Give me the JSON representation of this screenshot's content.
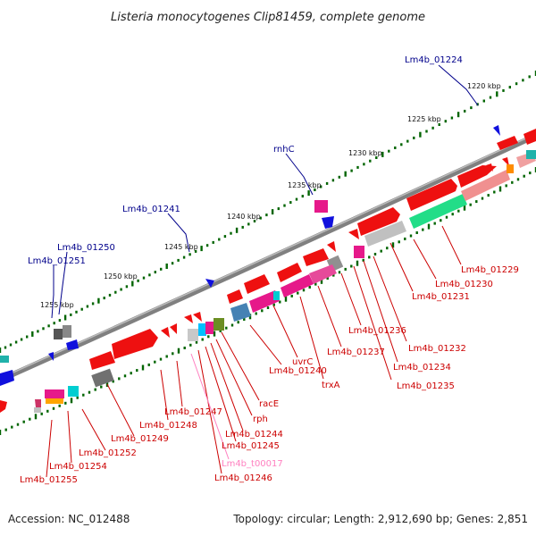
{
  "title": "Listeria monocytogenes Clip81459, complete genome",
  "footer": {
    "accession": "Accession: NC_012488",
    "topology": "Topology: circular; Length: 2,912,690 bp; Genes: 2,851"
  },
  "colors": {
    "forward_gene_label": "#00008b",
    "reverse_gene_label": "#cc0000",
    "trna_label": "#ff80c0",
    "backbone": "#808080",
    "tick_forward": "#006400"
  },
  "scale_ticks": [
    "1220 kbp",
    "1225 kbp",
    "1230 kbp",
    "1235 kbp",
    "1240 kbp",
    "1245 kbp",
    "1250 kbp",
    "1255 kbp"
  ],
  "labels_forward": [
    "Lm4b_01224",
    "rnhC",
    "Lm4b_01241",
    "Lm4b_01250",
    "Lm4b_01251"
  ],
  "labels_reverse": [
    "Lm4b_01229",
    "Lm4b_01230",
    "Lm4b_01231",
    "Lm4b_01236",
    "Lm4b_01232",
    "Lm4b_01234",
    "Lm4b_01237",
    "Lm4b_01235",
    "uvrC",
    "Lm4b_01240",
    "trxA",
    "racE",
    "rph",
    "Lm4b_01244",
    "Lm4b_01245",
    "Lm4b_01247",
    "Lm4b_01248",
    "Lm4b_01249",
    "Lm4b_01252",
    "Lm4b_01254",
    "Lm4b_01255",
    "Lm4b_01246"
  ],
  "labels_trna": [
    "Lm4b_t00017"
  ]
}
